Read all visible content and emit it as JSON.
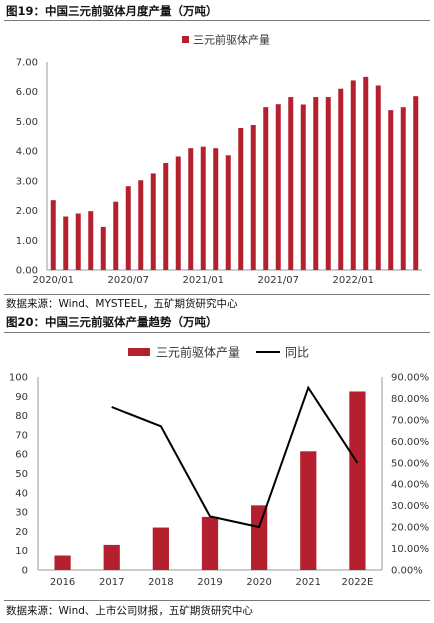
{
  "figure19": {
    "title": "图19：中国三元前驱体月度产量（万吨）",
    "source": "数据来源：Wind、MYSTEEL，五矿期货研究中心"
  },
  "figure20": {
    "title": "图20：中国三元前驱体产量趋势（万吨）",
    "source": "数据来源：Wind、上市公司财报，五矿期货研究中心"
  },
  "colors": {
    "bar": "#b5202e",
    "line": "#000000",
    "axis": "#999999"
  },
  "chart_data": [
    {
      "type": "bar",
      "series": [
        {
          "name": "三元前驱体产量",
          "values": [
            2.35,
            1.8,
            1.9,
            1.98,
            1.45,
            2.3,
            2.82,
            3.02,
            3.25,
            3.6,
            3.82,
            4.1,
            4.15,
            4.1,
            3.86,
            4.78,
            4.88,
            5.48,
            5.58,
            5.82,
            5.57,
            5.82,
            5.82,
            6.1,
            6.38,
            6.5,
            6.21,
            5.38,
            5.48,
            5.85
          ]
        }
      ],
      "x_tick_labels": [
        "2020/01",
        "2020/07",
        "2021/01",
        "2021/07",
        "2022/01"
      ],
      "x_tick_indices": [
        0,
        6,
        12,
        18,
        24
      ],
      "y_tick_labels": [
        "0.00",
        "1.00",
        "2.00",
        "3.00",
        "4.00",
        "5.00",
        "6.00",
        "7.00"
      ],
      "ylim": [
        0,
        7
      ],
      "legend_position": "top-right"
    },
    {
      "type": "bar+line",
      "categories": [
        "2016",
        "2017",
        "2018",
        "2019",
        "2020",
        "2021",
        "2022E"
      ],
      "series": [
        {
          "name": "三元前驱体产量",
          "type": "bar",
          "axis": "left",
          "values": [
            7.5,
            13,
            22,
            27.5,
            33.5,
            61.5,
            92.5
          ]
        },
        {
          "name": "同比",
          "type": "line",
          "axis": "right",
          "values": [
            null,
            76,
            67,
            25,
            20,
            85,
            50
          ]
        }
      ],
      "y_left_tick_labels": [
        "0",
        "10",
        "20",
        "30",
        "40",
        "50",
        "60",
        "70",
        "80",
        "90",
        "100"
      ],
      "y_right_tick_labels": [
        "0.00%",
        "10.00%",
        "20.00%",
        "30.00%",
        "40.00%",
        "50.00%",
        "60.00%",
        "70.00%",
        "80.00%",
        "90.00%"
      ],
      "ylim_left": [
        0,
        100
      ],
      "ylim_right": [
        0,
        90
      ],
      "legend_position": "top"
    }
  ]
}
